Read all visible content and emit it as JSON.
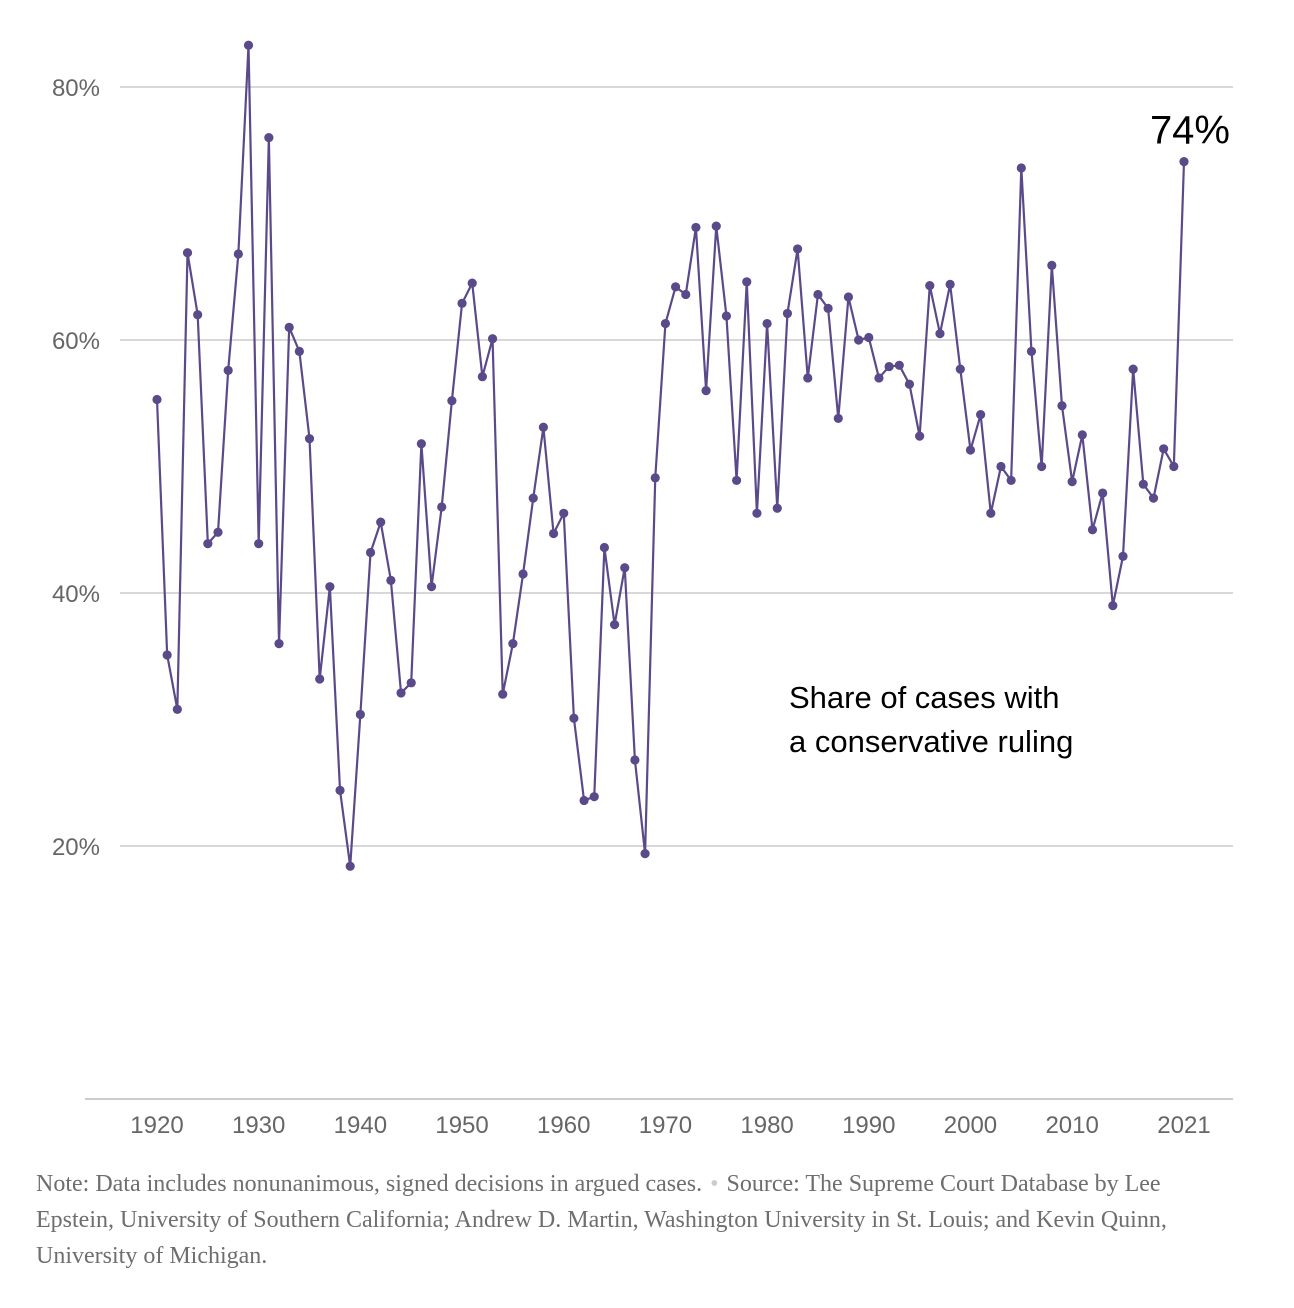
{
  "chart_data": {
    "type": "line",
    "title": "",
    "xlabel": "",
    "ylabel": "",
    "xlim": [
      1920,
      2021
    ],
    "ylim": [
      0,
      80
    ],
    "grid": true,
    "y_ticks": [
      20,
      40,
      60,
      80
    ],
    "y_tick_labels": [
      "20%",
      "40%",
      "60%",
      "80%"
    ],
    "x_ticks": [
      1920,
      1930,
      1940,
      1950,
      1960,
      1970,
      1980,
      1990,
      2000,
      2010,
      2021
    ],
    "x_tick_labels": [
      "1920",
      "1930",
      "1940",
      "1950",
      "1960",
      "1970",
      "1980",
      "1990",
      "2000",
      "2010",
      "2021"
    ],
    "annotation": [
      "Share of cases with",
      "a conservative ruling"
    ],
    "last_value_label": "74%",
    "series": [
      {
        "color": "#5b4a8a",
        "x": [
          1920,
          1921,
          1922,
          1923,
          1924,
          1925,
          1926,
          1927,
          1928,
          1929,
          1930,
          1931,
          1932,
          1933,
          1934,
          1935,
          1936,
          1937,
          1938,
          1939,
          1940,
          1941,
          1942,
          1943,
          1944,
          1945,
          1946,
          1947,
          1948,
          1949,
          1950,
          1951,
          1952,
          1953,
          1954,
          1955,
          1956,
          1957,
          1958,
          1959,
          1960,
          1961,
          1962,
          1963,
          1964,
          1965,
          1966,
          1967,
          1968,
          1969,
          1970,
          1971,
          1972,
          1973,
          1974,
          1975,
          1976,
          1977,
          1978,
          1979,
          1980,
          1981,
          1982,
          1983,
          1984,
          1985,
          1986,
          1987,
          1988,
          1989,
          1990,
          1991,
          1992,
          1993,
          1994,
          1995,
          1996,
          1997,
          1998,
          1999,
          2000,
          2001,
          2002,
          2003,
          2004,
          2005,
          2006,
          2007,
          2008,
          2009,
          2010,
          2011,
          2012,
          2013,
          2014,
          2015,
          2016,
          2017,
          2018,
          2019,
          2020,
          2021
        ],
        "values": [
          55.3,
          35.1,
          30.8,
          66.9,
          62.0,
          43.9,
          44.8,
          57.6,
          66.8,
          83.3,
          43.9,
          76.0,
          36.0,
          61.0,
          59.1,
          52.2,
          33.2,
          40.5,
          24.4,
          18.4,
          30.4,
          43.2,
          45.6,
          41.0,
          32.1,
          32.9,
          51.8,
          40.5,
          46.8,
          55.2,
          62.9,
          64.5,
          57.1,
          60.1,
          32.0,
          36.0,
          41.5,
          47.5,
          53.1,
          44.7,
          46.3,
          30.1,
          23.6,
          23.9,
          43.6,
          37.5,
          42.0,
          26.8,
          19.4,
          49.1,
          61.3,
          64.2,
          63.6,
          68.9,
          56.0,
          69.0,
          61.9,
          48.9,
          64.6,
          46.3,
          61.3,
          46.7,
          62.1,
          67.2,
          57.0,
          63.6,
          62.5,
          53.8,
          63.4,
          60.0,
          60.2,
          57.0,
          57.9,
          58.0,
          56.5,
          52.4,
          64.3,
          60.5,
          64.4,
          57.7,
          51.3,
          54.1,
          46.3,
          50.0,
          48.9,
          73.6,
          59.1,
          50.0,
          65.9,
          54.8,
          48.8,
          52.5,
          45.0,
          47.9,
          39.0,
          42.9,
          57.7,
          48.6,
          47.5,
          51.4,
          50.0,
          74.1
        ]
      }
    ]
  },
  "footer": {
    "note": "Note: Data includes nonunanimous, signed decisions in argued cases.",
    "source": "Source: The Supreme Court Database by Lee Epstein, University of Southern California; Andrew D. Martin, Washington University in St. Louis; and Kevin Quinn, University of Michigan."
  }
}
